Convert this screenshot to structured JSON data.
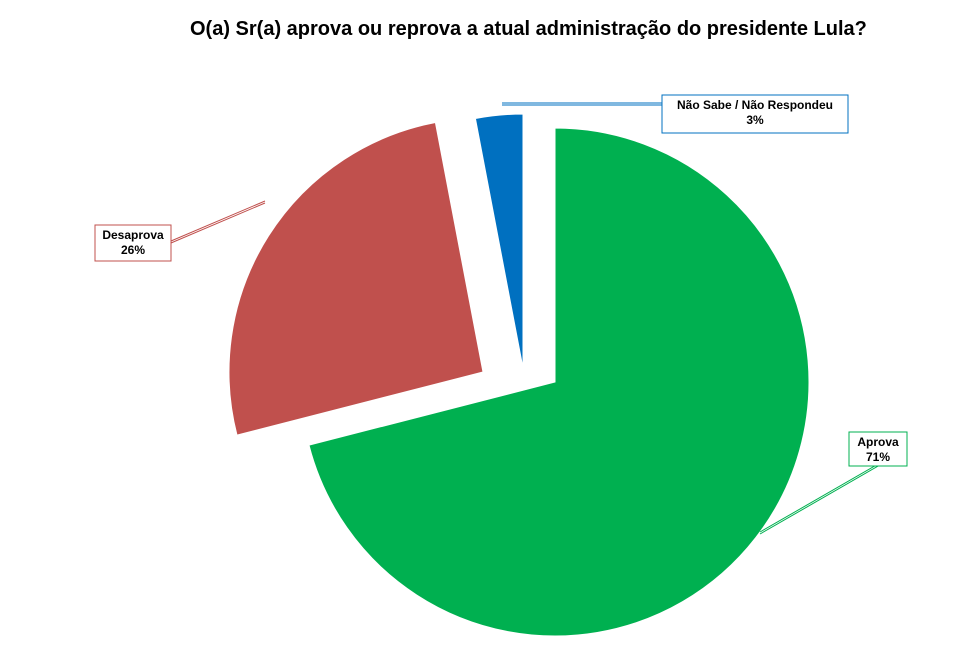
{
  "chart_data": {
    "type": "pie",
    "title": "O(a) Sr(a) aprova ou reprova a atual administração do presidente Lula?",
    "exploded": true,
    "slices": [
      {
        "label": "Aprova",
        "value": 71,
        "value_label": "71%",
        "color": "#00b050"
      },
      {
        "label": "Desaprova",
        "value": 26,
        "value_label": "26%",
        "color": "#c0504d"
      },
      {
        "label": "Não Sabe / Não Respondeu",
        "value": 3,
        "value_label": "3%",
        "color": "#0070c0"
      }
    ]
  }
}
